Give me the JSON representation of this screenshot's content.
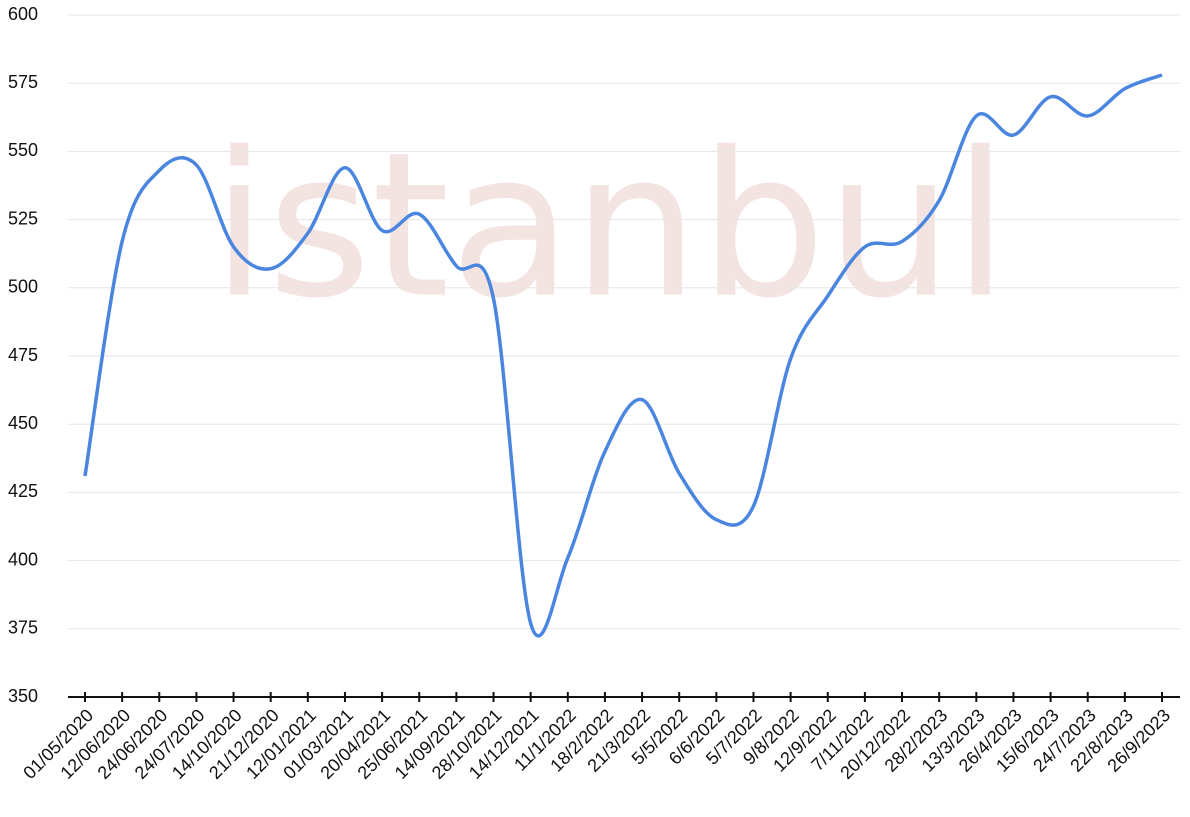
{
  "watermark": "istanbul",
  "chart_data": {
    "type": "line",
    "categories": [
      "01/05/2020",
      "12/06/2020",
      "24/06/2020",
      "24/07/2020",
      "14/10/2020",
      "21/12/2020",
      "12/01/2021",
      "01/03/2021",
      "20/04/2021",
      "25/06/2021",
      "14/09/2021",
      "28/10/2021",
      "14/12/2021",
      "11/1/2022",
      "18/2/2022",
      "21/3/2022",
      "5/5/2022",
      "6/6/2022",
      "5/7/2022",
      "9/8/2022",
      "12/9/2022",
      "7/11/2022",
      "20/12/2022",
      "28/2/2023",
      "13/3/2023",
      "26/4/2023",
      "15/6/2023",
      "24/7/2023",
      "22/8/2023",
      "26/9/2023"
    ],
    "values": [
      431,
      517,
      543,
      545,
      515,
      507,
      520,
      544,
      521,
      527,
      508,
      496,
      377,
      401,
      440,
      459,
      432,
      415,
      420,
      474,
      497,
      515,
      517,
      532,
      563,
      556,
      570,
      563,
      573,
      578
    ],
    "color": "#4a86e0",
    "ylim": [
      350,
      600
    ],
    "yticks": [
      350,
      375,
      400,
      425,
      450,
      475,
      500,
      525,
      550,
      575,
      600
    ],
    "grid": true
  }
}
